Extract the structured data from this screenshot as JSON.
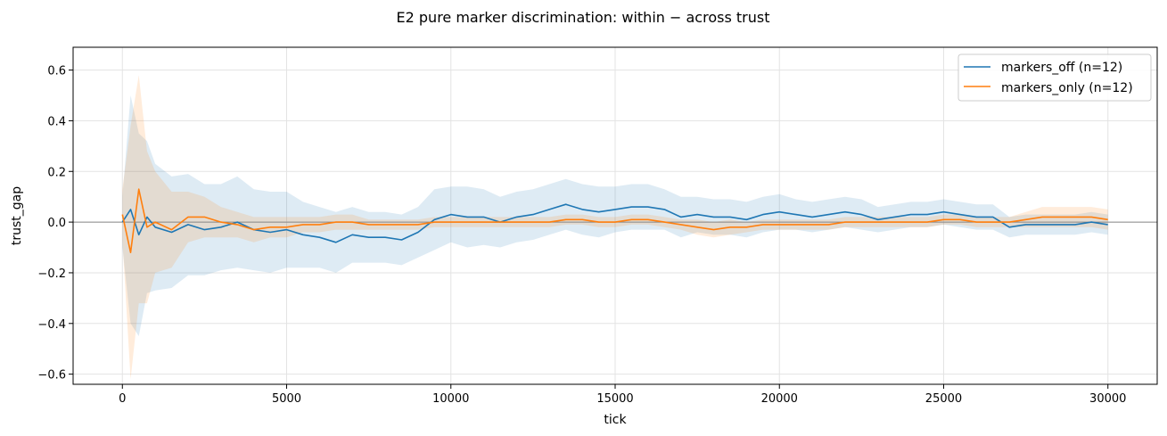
{
  "chart_data": {
    "type": "line",
    "title": "E2 pure marker discrimination: within − across trust",
    "xlabel": "tick",
    "ylabel": "trust_gap",
    "xlim": [
      -1500,
      31500
    ],
    "ylim": [
      -0.64,
      0.69
    ],
    "xticks": [
      0,
      5000,
      10000,
      15000,
      20000,
      25000,
      30000
    ],
    "yticks": [
      -0.6,
      -0.4,
      -0.2,
      0.0,
      0.2,
      0.4,
      0.6
    ],
    "ytick_labels": [
      "−0.6",
      "−0.4",
      "−0.2",
      "0.0",
      "0.2",
      "0.4",
      "0.6"
    ],
    "grid": true,
    "reference_line_y": 0,
    "legend_position": "top-right",
    "x": [
      0,
      250,
      500,
      750,
      1000,
      1500,
      2000,
      2500,
      3000,
      3500,
      4000,
      4500,
      5000,
      5500,
      6000,
      6500,
      7000,
      7500,
      8000,
      8500,
      9000,
      9500,
      10000,
      10500,
      11000,
      11500,
      12000,
      12500,
      13000,
      13500,
      14000,
      14500,
      15000,
      15500,
      16000,
      16500,
      17000,
      17500,
      18000,
      18500,
      19000,
      19500,
      20000,
      20500,
      21000,
      21500,
      22000,
      22500,
      23000,
      23500,
      24000,
      24500,
      25000,
      25500,
      26000,
      26500,
      27000,
      27500,
      28000,
      28500,
      29000,
      29500,
      30000
    ],
    "series": [
      {
        "name": "markers_off (n=12)",
        "color": "#1f77b4",
        "mean": [
          0.0,
          0.05,
          -0.05,
          0.02,
          -0.02,
          -0.04,
          -0.01,
          -0.03,
          -0.02,
          0.0,
          -0.03,
          -0.04,
          -0.03,
          -0.05,
          -0.06,
          -0.08,
          -0.05,
          -0.06,
          -0.06,
          -0.07,
          -0.04,
          0.01,
          0.03,
          0.02,
          0.02,
          0.0,
          0.02,
          0.03,
          0.05,
          0.07,
          0.05,
          0.04,
          0.05,
          0.06,
          0.06,
          0.05,
          0.02,
          0.03,
          0.02,
          0.02,
          0.01,
          0.03,
          0.04,
          0.03,
          0.02,
          0.03,
          0.04,
          0.03,
          0.01,
          0.02,
          0.03,
          0.03,
          0.04,
          0.03,
          0.02,
          0.02,
          -0.02,
          -0.01,
          -0.01,
          -0.01,
          -0.01,
          0.0,
          -0.01
        ],
        "spread": [
          0.1,
          0.45,
          0.4,
          0.3,
          0.25,
          0.22,
          0.2,
          0.18,
          0.17,
          0.18,
          0.16,
          0.16,
          0.15,
          0.13,
          0.12,
          0.12,
          0.11,
          0.1,
          0.1,
          0.1,
          0.1,
          0.12,
          0.11,
          0.12,
          0.11,
          0.1,
          0.1,
          0.1,
          0.1,
          0.1,
          0.1,
          0.1,
          0.09,
          0.09,
          0.09,
          0.08,
          0.08,
          0.07,
          0.07,
          0.07,
          0.07,
          0.07,
          0.07,
          0.06,
          0.06,
          0.06,
          0.06,
          0.06,
          0.05,
          0.05,
          0.05,
          0.05,
          0.05,
          0.05,
          0.05,
          0.05,
          0.04,
          0.04,
          0.04,
          0.04,
          0.04,
          0.04,
          0.04
        ]
      },
      {
        "name": "markers_only (n=12)",
        "color": "#ff7f0e",
        "mean": [
          0.03,
          -0.12,
          0.13,
          -0.02,
          0.0,
          -0.03,
          0.02,
          0.02,
          0.0,
          -0.01,
          -0.03,
          -0.02,
          -0.02,
          -0.01,
          -0.01,
          0.0,
          0.0,
          -0.01,
          -0.01,
          -0.01,
          -0.01,
          0.0,
          0.0,
          0.0,
          0.0,
          0.0,
          0.0,
          0.0,
          0.0,
          0.01,
          0.01,
          0.0,
          0.0,
          0.01,
          0.01,
          0.0,
          -0.01,
          -0.02,
          -0.03,
          -0.02,
          -0.02,
          -0.01,
          -0.01,
          -0.01,
          -0.01,
          -0.01,
          0.0,
          0.0,
          0.0,
          0.0,
          0.0,
          0.0,
          0.01,
          0.01,
          0.0,
          0.0,
          0.0,
          0.01,
          0.02,
          0.02,
          0.02,
          0.02,
          0.01
        ],
        "spread": [
          0.1,
          0.5,
          0.45,
          0.3,
          0.2,
          0.15,
          0.1,
          0.08,
          0.06,
          0.05,
          0.05,
          0.04,
          0.04,
          0.03,
          0.03,
          0.03,
          0.03,
          0.02,
          0.02,
          0.02,
          0.02,
          0.02,
          0.02,
          0.02,
          0.02,
          0.02,
          0.02,
          0.02,
          0.02,
          0.02,
          0.02,
          0.02,
          0.02,
          0.02,
          0.02,
          0.02,
          0.02,
          0.03,
          0.03,
          0.03,
          0.02,
          0.02,
          0.02,
          0.02,
          0.02,
          0.02,
          0.02,
          0.02,
          0.02,
          0.02,
          0.02,
          0.02,
          0.02,
          0.02,
          0.02,
          0.02,
          0.02,
          0.03,
          0.04,
          0.04,
          0.04,
          0.04,
          0.04
        ]
      }
    ]
  }
}
